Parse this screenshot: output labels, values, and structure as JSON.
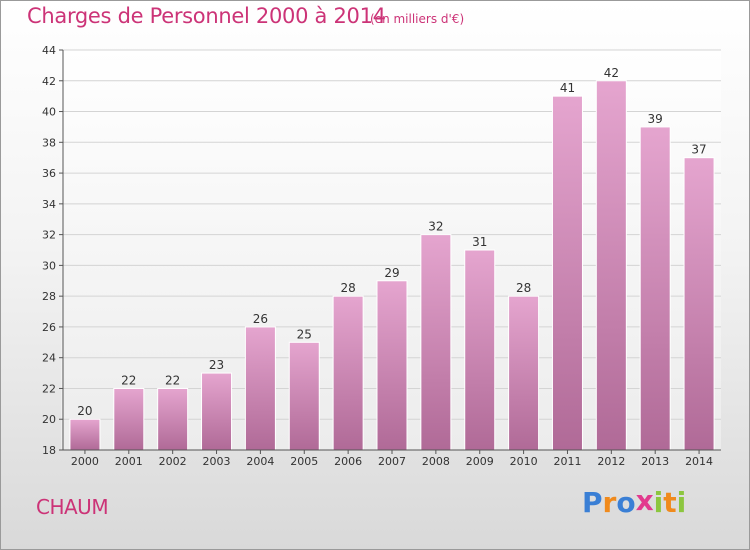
{
  "title": "Charges de Personnel 2000 à 2014",
  "subtitle": "(en milliers d'€)",
  "place": "CHAUM",
  "logo": {
    "text": "Proxiti",
    "letter_colors": [
      "#3a7fd5",
      "#f08a1c",
      "#3a7fd5",
      "#e23a8e",
      "#8cc63f",
      "#f08a1c",
      "#8cc63f"
    ]
  },
  "colors": {
    "accent": "#cc3377",
    "bar_top": "#e5a5cf",
    "bar_bottom": "#b06a97",
    "axis": "#555555",
    "grid": "#d4d4d4"
  },
  "chart_data": {
    "type": "bar",
    "categories": [
      "2000",
      "2001",
      "2002",
      "2003",
      "2004",
      "2005",
      "2006",
      "2007",
      "2008",
      "2009",
      "2010",
      "2011",
      "2012",
      "2013",
      "2014"
    ],
    "values": [
      20,
      22,
      22,
      23,
      26,
      25,
      28,
      29,
      32,
      31,
      28,
      41,
      42,
      39,
      37
    ],
    "ylim": [
      18,
      44
    ],
    "yticks": [
      18,
      20,
      22,
      24,
      26,
      28,
      30,
      32,
      34,
      36,
      38,
      40,
      42,
      44
    ],
    "xlabel": "",
    "ylabel": "",
    "grid": true,
    "data_labels": true
  }
}
